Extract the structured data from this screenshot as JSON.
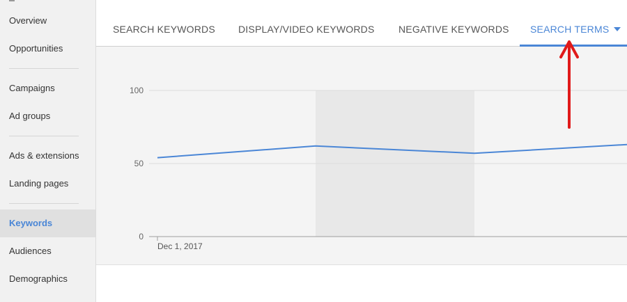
{
  "sidebar": {
    "items": [
      {
        "label": "Overview"
      },
      {
        "label": "Opportunities"
      },
      {
        "label": "Campaigns"
      },
      {
        "label": "Ad groups"
      },
      {
        "label": "Ads & extensions"
      },
      {
        "label": "Landing pages"
      },
      {
        "label": "Keywords",
        "active": true
      },
      {
        "label": "Audiences"
      },
      {
        "label": "Demographics"
      }
    ]
  },
  "tabs": {
    "items": [
      {
        "label": "SEARCH KEYWORDS"
      },
      {
        "label": "DISPLAY/VIDEO KEYWORDS"
      },
      {
        "label": "NEGATIVE KEYWORDS"
      },
      {
        "label": "SEARCH TERMS",
        "active": true
      }
    ],
    "dropdown_icon": "caret-down-icon"
  },
  "chart_data": {
    "type": "line",
    "x": [
      "Dec 1, 2017",
      "",
      "",
      ""
    ],
    "series": [
      {
        "values": [
          54,
          62,
          57,
          63
        ]
      }
    ],
    "xlabel": "",
    "ylabel": "",
    "ylim": [
      0,
      100
    ],
    "yticks": [
      "100",
      "50",
      "0"
    ],
    "xtick_label": "Dec 1, 2017",
    "grid": true,
    "series_color": "#4a86d6",
    "highlight_band_color": "#e8e8e8"
  },
  "annotation": {
    "arrow_icon": "red-arrow-up-icon",
    "color": "#e01a1a"
  }
}
